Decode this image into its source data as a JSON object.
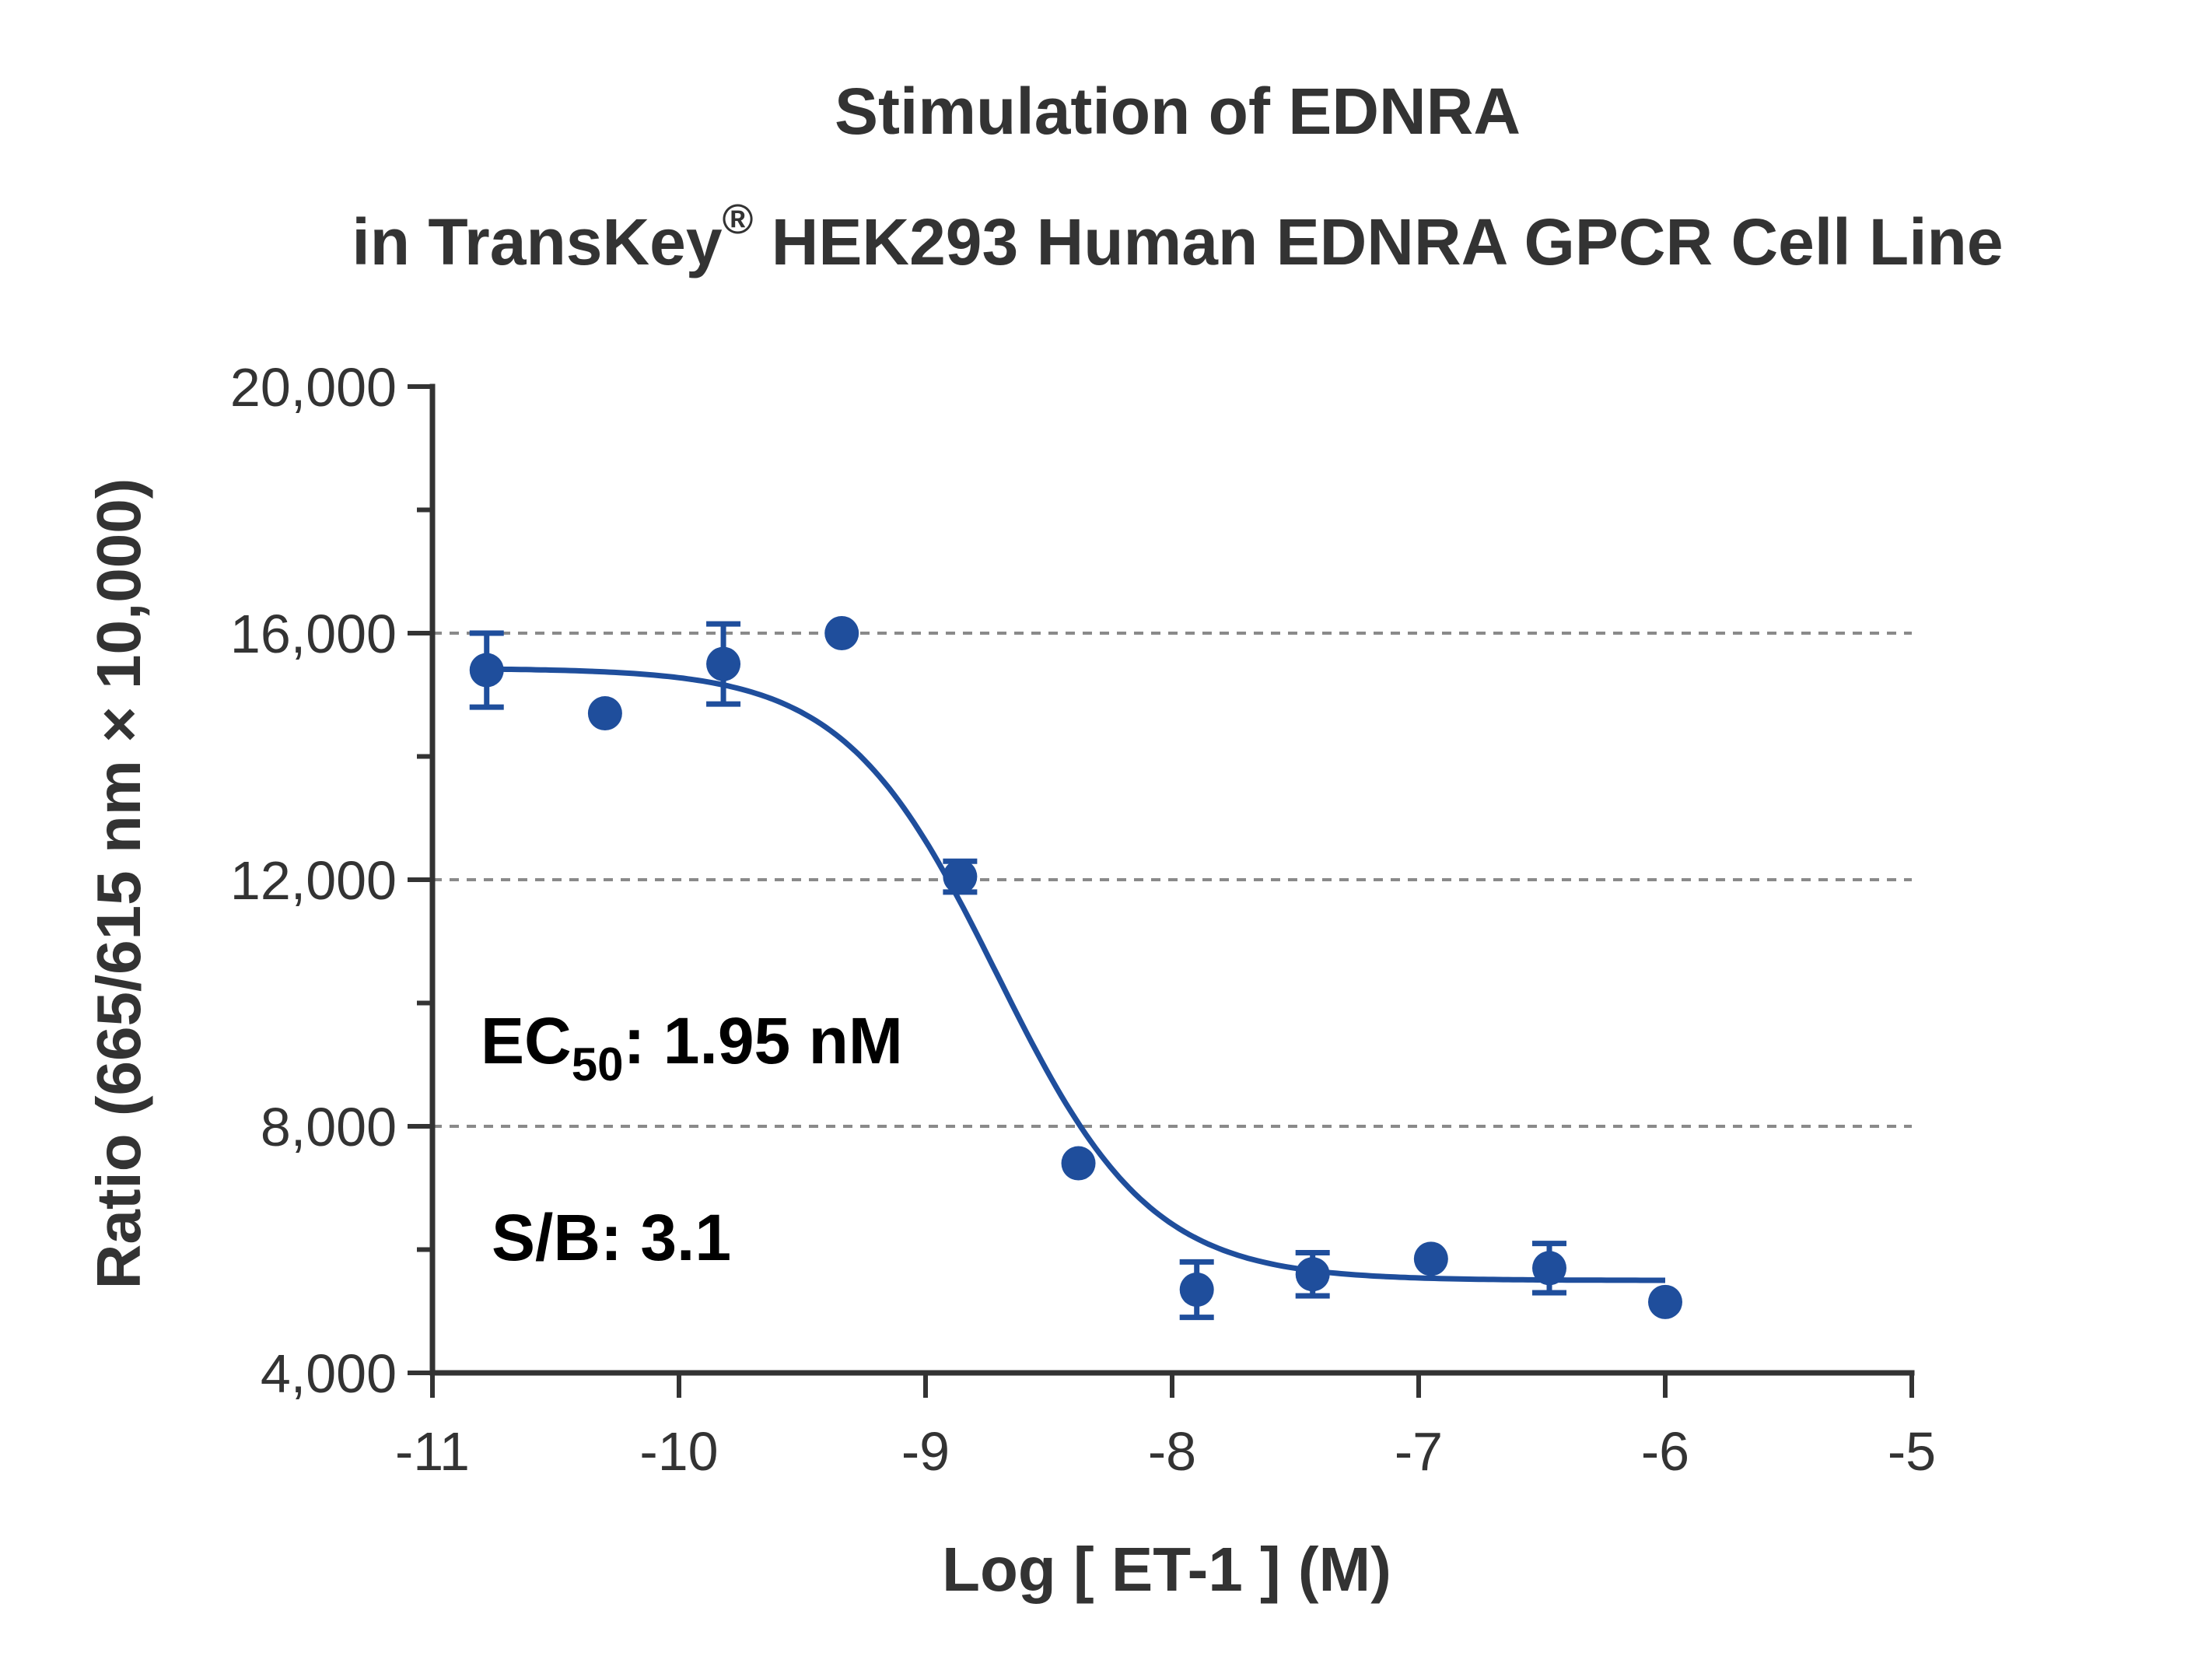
{
  "chart_data": {
    "type": "scatter",
    "title_line1": "Stimulation of  EDNRA",
    "title_line2_prefix": "in TransKey",
    "title_line2_sup": "®",
    "title_line2_suffix": " HEK293 Human EDNRA GPCR Cell Line",
    "xlabel": "Log [ ET-1 ]  (M)",
    "ylabel": "Ratio (665/615 nm × 10,000)",
    "xlim": [
      -11,
      -5
    ],
    "ylim": [
      4000,
      20000
    ],
    "xticks": [
      -11,
      -10,
      -9,
      -8,
      -7,
      -6,
      -5
    ],
    "xtick_labels": [
      "-11",
      "-10",
      "-9",
      "-8",
      "-7",
      "-6",
      "-5"
    ],
    "yticks": [
      4000,
      8000,
      12000,
      16000,
      20000
    ],
    "ytick_labels": [
      "4,000",
      "8,000",
      "12,000",
      "16,000",
      "20,000"
    ],
    "y_minor_ticks": [
      6000,
      10000,
      14000,
      18000
    ],
    "gridlines_y": [
      8000,
      12000,
      16000
    ],
    "grid": "dashed horizontal at major ticks",
    "series": [
      {
        "color": "#1f4e9c",
        "x": [
          -10.78,
          -10.3,
          -9.82,
          -9.34,
          -8.86,
          -8.38,
          -7.9,
          -7.43,
          -6.95,
          -6.47,
          -6.0
        ],
        "y": [
          15400,
          14700,
          15500,
          16000,
          12050,
          7400,
          5350,
          5600,
          5850,
          5700,
          5150
        ],
        "error": [
          600,
          0,
          650,
          0,
          250,
          0,
          450,
          350,
          0,
          400,
          0
        ]
      }
    ],
    "fit": {
      "model": "four-parameter logistic",
      "top": 15430,
      "bottom": 5500,
      "log_ec50": -8.71,
      "hill_slope": -1.4,
      "x_range": [
        -10.78,
        -6.0
      ]
    },
    "annotations": {
      "ec50_prefix": "EC",
      "ec50_sub": "50",
      "ec50_suffix": ": 1.95 nM",
      "sb": "S/B: 3.1"
    }
  }
}
